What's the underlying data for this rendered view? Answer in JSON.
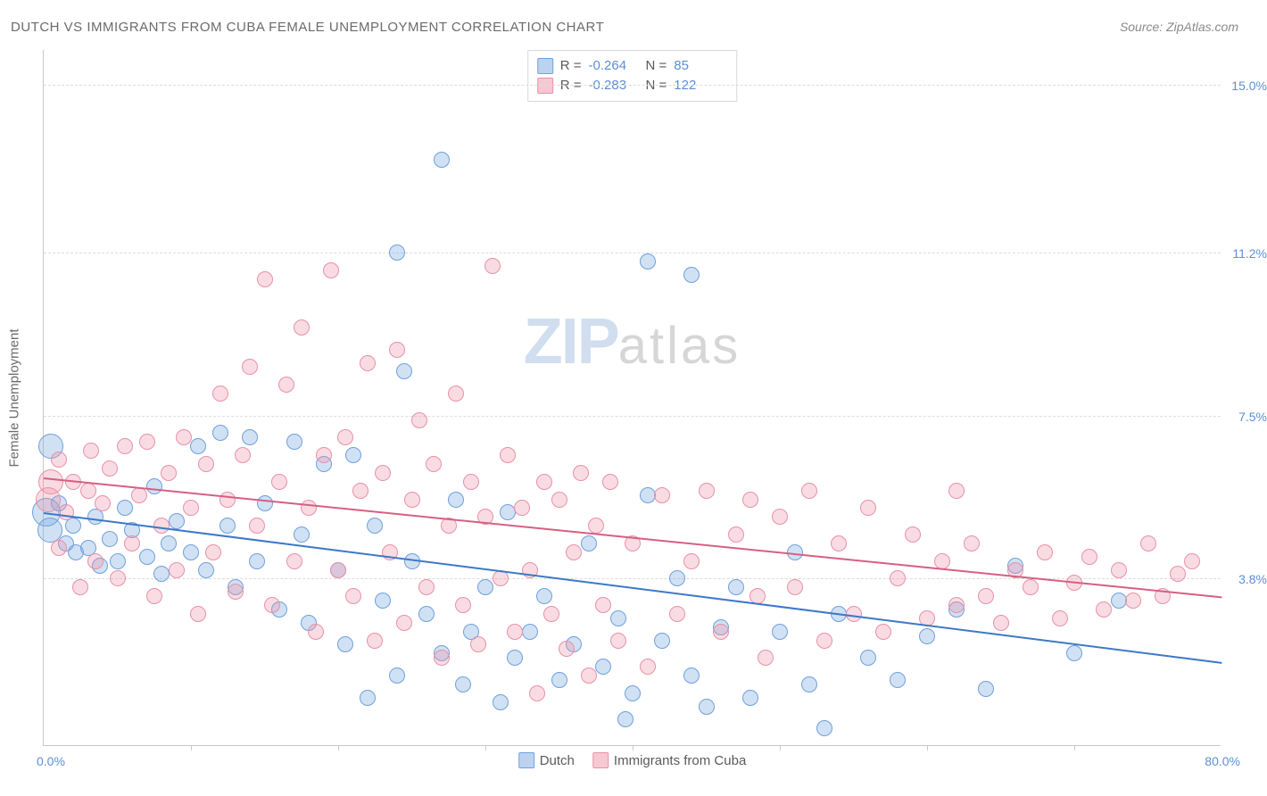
{
  "title": "DUTCH VS IMMIGRANTS FROM CUBA FEMALE UNEMPLOYMENT CORRELATION CHART",
  "source": "Source: ZipAtlas.com",
  "y_axis_label": "Female Unemployment",
  "watermark": {
    "part1": "ZIP",
    "part2": "atlas"
  },
  "chart": {
    "type": "scatter",
    "xlim": [
      0,
      80
    ],
    "ylim": [
      0,
      15.8
    ],
    "x_tick_positions": [
      10,
      20,
      30,
      40,
      50,
      60,
      70
    ],
    "y_gridlines": [
      3.8,
      7.5,
      11.2,
      15.0
    ],
    "y_tick_labels": [
      "3.8%",
      "7.5%",
      "11.2%",
      "15.0%"
    ],
    "xlim_labels": [
      "0.0%",
      "80.0%"
    ],
    "background_color": "#ffffff",
    "grid_color": "#dcdcdc",
    "axis_color": "#c9c9c9",
    "label_color": "#5b8fd6",
    "marker_radius": 8,
    "marker_border_width": 1.5,
    "series": [
      {
        "name": "Dutch",
        "fill": "rgba(122,168,224,0.35)",
        "stroke": "#6fa0dd",
        "R": "-0.264",
        "N": "85",
        "trend": {
          "y_at_x0": 5.3,
          "y_at_xmax": 1.9,
          "color": "#3d78c7"
        },
        "points": [
          [
            0.5,
            6.8,
            14
          ],
          [
            0.2,
            5.3,
            16
          ],
          [
            0.4,
            4.9,
            14
          ],
          [
            1,
            5.5,
            9
          ],
          [
            1.5,
            4.6,
            9
          ],
          [
            2,
            5.0,
            9
          ],
          [
            2.2,
            4.4,
            9
          ],
          [
            3,
            4.5,
            9
          ],
          [
            3.5,
            5.2,
            9
          ],
          [
            3.8,
            4.1,
            9
          ],
          [
            4.5,
            4.7,
            9
          ],
          [
            5,
            4.2,
            9
          ],
          [
            5.5,
            5.4,
            9
          ],
          [
            6,
            4.9,
            9
          ],
          [
            7,
            4.3,
            9
          ],
          [
            7.5,
            5.9,
            9
          ],
          [
            8,
            3.9,
            9
          ],
          [
            8.5,
            4.6,
            9
          ],
          [
            9,
            5.1,
            9
          ],
          [
            10,
            4.4,
            9
          ],
          [
            10.5,
            6.8,
            9
          ],
          [
            11,
            4.0,
            9
          ],
          [
            12,
            7.1,
            9
          ],
          [
            12.5,
            5.0,
            9
          ],
          [
            13,
            3.6,
            9
          ],
          [
            14,
            7.0,
            9
          ],
          [
            14.5,
            4.2,
            9
          ],
          [
            15,
            5.5,
            9
          ],
          [
            16,
            3.1,
            9
          ],
          [
            17,
            6.9,
            9
          ],
          [
            17.5,
            4.8,
            9
          ],
          [
            18,
            2.8,
            9
          ],
          [
            19,
            6.4,
            9
          ],
          [
            20,
            4.0,
            9
          ],
          [
            20.5,
            2.3,
            9
          ],
          [
            21,
            6.6,
            9
          ],
          [
            22,
            1.1,
            9
          ],
          [
            22.5,
            5.0,
            9
          ],
          [
            23,
            3.3,
            9
          ],
          [
            24,
            1.6,
            9
          ],
          [
            24,
            11.2,
            9
          ],
          [
            24.5,
            8.5,
            9
          ],
          [
            25,
            4.2,
            9
          ],
          [
            26,
            3.0,
            9
          ],
          [
            27,
            2.1,
            9
          ],
          [
            27,
            13.3,
            9
          ],
          [
            28,
            5.6,
            9
          ],
          [
            28.5,
            1.4,
            9
          ],
          [
            29,
            2.6,
            9
          ],
          [
            30,
            3.6,
            9
          ],
          [
            31,
            1.0,
            9
          ],
          [
            31.5,
            5.3,
            9
          ],
          [
            32,
            2.0,
            9
          ],
          [
            33,
            2.6,
            9
          ],
          [
            34,
            3.4,
            9
          ],
          [
            35,
            1.5,
            9
          ],
          [
            36,
            2.3,
            9
          ],
          [
            37,
            4.6,
            9
          ],
          [
            38,
            1.8,
            9
          ],
          [
            39,
            2.9,
            9
          ],
          [
            39.5,
            0.6,
            9
          ],
          [
            40,
            1.2,
            9
          ],
          [
            41,
            5.7,
            9
          ],
          [
            41,
            11.0,
            9
          ],
          [
            42,
            2.4,
            9
          ],
          [
            43,
            3.8,
            9
          ],
          [
            44,
            1.6,
            9
          ],
          [
            44,
            10.7,
            9
          ],
          [
            45,
            0.9,
            9
          ],
          [
            46,
            2.7,
            9
          ],
          [
            47,
            3.6,
            9
          ],
          [
            48,
            1.1,
            9
          ],
          [
            50,
            2.6,
            9
          ],
          [
            51,
            4.4,
            9
          ],
          [
            52,
            1.4,
            9
          ],
          [
            53,
            0.4,
            9
          ],
          [
            54,
            3.0,
            9
          ],
          [
            56,
            2.0,
            9
          ],
          [
            58,
            1.5,
            9
          ],
          [
            60,
            2.5,
            9
          ],
          [
            62,
            3.1,
            9
          ],
          [
            64,
            1.3,
            9
          ],
          [
            66,
            4.1,
            9
          ],
          [
            70,
            2.1,
            9
          ],
          [
            73,
            3.3,
            9
          ]
        ]
      },
      {
        "name": "Immigrants from Cuba",
        "fill": "rgba(235,145,168,0.32)",
        "stroke": "#e990a7",
        "R": "-0.283",
        "N": "122",
        "trend": {
          "y_at_x0": 6.1,
          "y_at_xmax": 3.4,
          "color": "#d65f82"
        },
        "points": [
          [
            0.5,
            6.0,
            14
          ],
          [
            0.3,
            5.6,
            14
          ],
          [
            1,
            6.5,
            9
          ],
          [
            1,
            4.5,
            9
          ],
          [
            1.5,
            5.3,
            9
          ],
          [
            2,
            6.0,
            9
          ],
          [
            2.5,
            3.6,
            9
          ],
          [
            3,
            5.8,
            9
          ],
          [
            3.2,
            6.7,
            9
          ],
          [
            3.5,
            4.2,
            9
          ],
          [
            4,
            5.5,
            9
          ],
          [
            4.5,
            6.3,
            9
          ],
          [
            5,
            3.8,
            9
          ],
          [
            5.5,
            6.8,
            9
          ],
          [
            6,
            4.6,
            9
          ],
          [
            6.5,
            5.7,
            9
          ],
          [
            7,
            6.9,
            9
          ],
          [
            7.5,
            3.4,
            9
          ],
          [
            8,
            5.0,
            9
          ],
          [
            8.5,
            6.2,
            9
          ],
          [
            9,
            4.0,
            9
          ],
          [
            9.5,
            7.0,
            9
          ],
          [
            10,
            5.4,
            9
          ],
          [
            10.5,
            3.0,
            9
          ],
          [
            11,
            6.4,
            9
          ],
          [
            11.5,
            4.4,
            9
          ],
          [
            12,
            8.0,
            9
          ],
          [
            12.5,
            5.6,
            9
          ],
          [
            13,
            3.5,
            9
          ],
          [
            13.5,
            6.6,
            9
          ],
          [
            14,
            8.6,
            9
          ],
          [
            14.5,
            5.0,
            9
          ],
          [
            15,
            10.6,
            9
          ],
          [
            15.5,
            3.2,
            9
          ],
          [
            16,
            6.0,
            9
          ],
          [
            16.5,
            8.2,
            9
          ],
          [
            17,
            4.2,
            9
          ],
          [
            17.5,
            9.5,
            9
          ],
          [
            18,
            5.4,
            9
          ],
          [
            18.5,
            2.6,
            9
          ],
          [
            19,
            6.6,
            9
          ],
          [
            19.5,
            10.8,
            9
          ],
          [
            20,
            4.0,
            9
          ],
          [
            20.5,
            7.0,
            9
          ],
          [
            21,
            3.4,
            9
          ],
          [
            21.5,
            5.8,
            9
          ],
          [
            22,
            8.7,
            9
          ],
          [
            22.5,
            2.4,
            9
          ],
          [
            23,
            6.2,
            9
          ],
          [
            23.5,
            4.4,
            9
          ],
          [
            24,
            9.0,
            9
          ],
          [
            24.5,
            2.8,
            9
          ],
          [
            25,
            5.6,
            9
          ],
          [
            25.5,
            7.4,
            9
          ],
          [
            26,
            3.6,
            9
          ],
          [
            26.5,
            6.4,
            9
          ],
          [
            27,
            2.0,
            9
          ],
          [
            27.5,
            5.0,
            9
          ],
          [
            28,
            8.0,
            9
          ],
          [
            28.5,
            3.2,
            9
          ],
          [
            29,
            6.0,
            9
          ],
          [
            29.5,
            2.3,
            9
          ],
          [
            30,
            5.2,
            9
          ],
          [
            30.5,
            10.9,
            9
          ],
          [
            31,
            3.8,
            9
          ],
          [
            31.5,
            6.6,
            9
          ],
          [
            32,
            2.6,
            9
          ],
          [
            32.5,
            5.4,
            9
          ],
          [
            33,
            4.0,
            9
          ],
          [
            33.5,
            1.2,
            9
          ],
          [
            34,
            6.0,
            9
          ],
          [
            34.5,
            3.0,
            9
          ],
          [
            35,
            5.6,
            9
          ],
          [
            35.5,
            2.2,
            9
          ],
          [
            36,
            4.4,
            9
          ],
          [
            36.5,
            6.2,
            9
          ],
          [
            37,
            1.6,
            9
          ],
          [
            37.5,
            5.0,
            9
          ],
          [
            38,
            3.2,
            9
          ],
          [
            38.5,
            6.0,
            9
          ],
          [
            39,
            2.4,
            9
          ],
          [
            40,
            4.6,
            9
          ],
          [
            41,
            1.8,
            9
          ],
          [
            42,
            5.7,
            9
          ],
          [
            43,
            3.0,
            9
          ],
          [
            44,
            4.2,
            9
          ],
          [
            45,
            5.8,
            9
          ],
          [
            46,
            2.6,
            9
          ],
          [
            47,
            4.8,
            9
          ],
          [
            48,
            5.6,
            9
          ],
          [
            48.5,
            3.4,
            9
          ],
          [
            49,
            2.0,
            9
          ],
          [
            50,
            5.2,
            9
          ],
          [
            51,
            3.6,
            9
          ],
          [
            52,
            5.8,
            9
          ],
          [
            53,
            2.4,
            9
          ],
          [
            54,
            4.6,
            9
          ],
          [
            55,
            3.0,
            9
          ],
          [
            56,
            5.4,
            9
          ],
          [
            57,
            2.6,
            9
          ],
          [
            58,
            3.8,
            9
          ],
          [
            59,
            4.8,
            9
          ],
          [
            60,
            2.9,
            9
          ],
          [
            61,
            4.2,
            9
          ],
          [
            62,
            3.2,
            9
          ],
          [
            62,
            5.8,
            9
          ],
          [
            63,
            4.6,
            9
          ],
          [
            64,
            3.4,
            9
          ],
          [
            65,
            2.8,
            9
          ],
          [
            66,
            4.0,
            9
          ],
          [
            67,
            3.6,
            9
          ],
          [
            68,
            4.4,
            9
          ],
          [
            69,
            2.9,
            9
          ],
          [
            70,
            3.7,
            9
          ],
          [
            71,
            4.3,
            9
          ],
          [
            72,
            3.1,
            9
          ],
          [
            73,
            4.0,
            9
          ],
          [
            74,
            3.3,
            9
          ],
          [
            75,
            4.6,
            9
          ],
          [
            76,
            3.4,
            9
          ],
          [
            77,
            3.9,
            9
          ],
          [
            78,
            4.2,
            9
          ]
        ]
      }
    ]
  },
  "stats_box": {
    "rows": [
      {
        "swatch_fill": "rgba(122,168,224,0.5)",
        "swatch_stroke": "#6fa0dd",
        "R_label": "R =",
        "R_val": "-0.264",
        "N_label": "N =",
        "N_val": "85"
      },
      {
        "swatch_fill": "rgba(235,145,168,0.5)",
        "swatch_stroke": "#e990a7",
        "R_label": "R =",
        "R_val": "-0.283",
        "N_label": "N =",
        "N_val": "122"
      }
    ]
  },
  "bottom_legend": [
    {
      "swatch_fill": "rgba(122,168,224,0.5)",
      "swatch_stroke": "#6fa0dd",
      "label": "Dutch"
    },
    {
      "swatch_fill": "rgba(235,145,168,0.5)",
      "swatch_stroke": "#e990a7",
      "label": "Immigrants from Cuba"
    }
  ]
}
